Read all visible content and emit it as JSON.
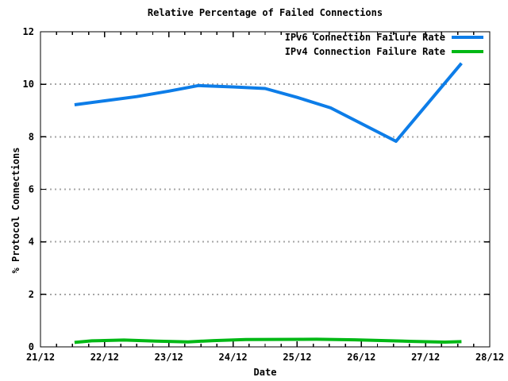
{
  "chart_data": {
    "type": "line",
    "title": "Relative Percentage of Failed Connections",
    "xlabel": "Date",
    "ylabel": "% Protocol Connections",
    "background_color": "#ffffff",
    "axis_color": "#000000",
    "grid_color": "#a6a6a6",
    "grid": "horizontal-dotted",
    "legend_position": "top-right-inside",
    "x_axis": {
      "range": [
        0,
        7
      ],
      "tick_labels": [
        "21/12",
        "22/12",
        "23/12",
        "24/12",
        "25/12",
        "26/12",
        "27/12",
        "28/12"
      ],
      "tick_positions": [
        0,
        1,
        2,
        3,
        4,
        5,
        6,
        7
      ],
      "minor_tick_interval": 0.25
    },
    "y_axis": {
      "range": [
        0,
        12
      ],
      "tick_labels": [
        "0",
        "2",
        "4",
        "6",
        "8",
        "10",
        "12"
      ],
      "tick_positions": [
        0,
        2,
        4,
        6,
        8,
        10,
        12
      ]
    },
    "series": [
      {
        "name": "IPv6 Connection Failure Rate",
        "color": "#0d7de8",
        "x": [
          0.53,
          1.0,
          1.5,
          2.0,
          2.46,
          3.0,
          3.5,
          4.0,
          4.52,
          5.54,
          6.56
        ],
        "y": [
          9.22,
          9.37,
          9.53,
          9.74,
          9.95,
          9.9,
          9.84,
          9.5,
          9.1,
          7.83,
          10.8
        ]
      },
      {
        "name": "IPv4 Connection Failure Rate",
        "color": "#00b815",
        "x": [
          0.53,
          0.8,
          1.3,
          1.8,
          2.3,
          2.7,
          3.2,
          4.3,
          4.9,
          5.8,
          6.3,
          6.56
        ],
        "y": [
          0.17,
          0.23,
          0.26,
          0.22,
          0.19,
          0.24,
          0.28,
          0.29,
          0.27,
          0.21,
          0.18,
          0.2
        ]
      }
    ]
  }
}
